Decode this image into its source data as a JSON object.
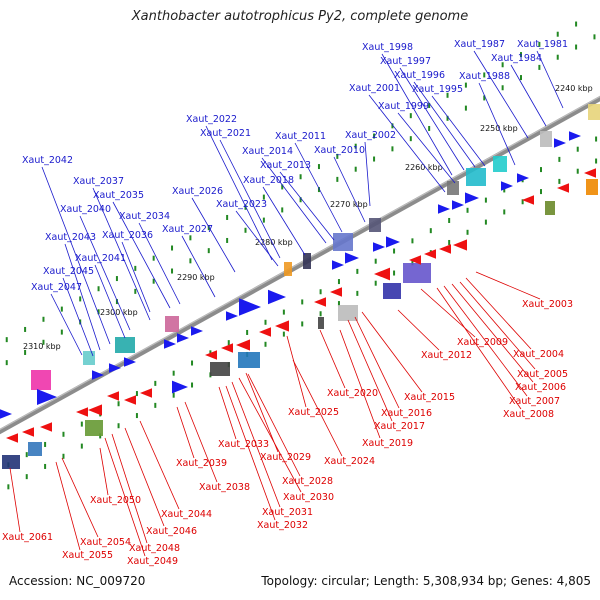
{
  "title": "Xanthobacter autotrophicus Py2, complete genome",
  "accession": "Accession: NC_009720",
  "summary": "Topology: circular; Length: 5,308,934 bp; Genes: 4,805",
  "colors": {
    "plus_label": "#1a1acc",
    "minus_label": "#dd0000",
    "plus_gene": "#1a1aee",
    "minus_gene": "#ee1111",
    "backbone": "#8c8c8c",
    "tick": "#228822"
  },
  "scale_labels": [
    "2240 kbp",
    "2250 kbp",
    "2260 kbp",
    "2270 kbp",
    "2280 kbp",
    "2290 kbp",
    "2300 kbp",
    "2310 kbp"
  ],
  "plus_labels": [
    "Xaut_1981",
    "Xaut_1984",
    "Xaut_1987",
    "Xaut_1988",
    "Xaut_1995",
    "Xaut_1996",
    "Xaut_1997",
    "Xaut_1998",
    "Xaut_1999",
    "Xaut_2001",
    "Xaut_2002",
    "Xaut_2010",
    "Xaut_2011",
    "Xaut_2013",
    "Xaut_2014",
    "Xaut_2018",
    "Xaut_2021",
    "Xaut_2022",
    "Xaut_2023",
    "Xaut_2026",
    "Xaut_2027",
    "Xaut_2034",
    "Xaut_2035",
    "Xaut_2036",
    "Xaut_2037",
    "Xaut_2040",
    "Xaut_2041",
    "Xaut_2042",
    "Xaut_2043",
    "Xaut_2045",
    "Xaut_2047"
  ],
  "minus_labels": [
    "Xaut_2003",
    "Xaut_2004",
    "Xaut_2005",
    "Xaut_2006",
    "Xaut_2007",
    "Xaut_2008",
    "Xaut_2009",
    "Xaut_2012",
    "Xaut_2015",
    "Xaut_2016",
    "Xaut_2017",
    "Xaut_2019",
    "Xaut_2020",
    "Xaut_2024",
    "Xaut_2025",
    "Xaut_2028",
    "Xaut_2029",
    "Xaut_2030",
    "Xaut_2031",
    "Xaut_2032",
    "Xaut_2033",
    "Xaut_2038",
    "Xaut_2039",
    "Xaut_2044",
    "Xaut_2046",
    "Xaut_2048",
    "Xaut_2049",
    "Xaut_2050",
    "Xaut_2054",
    "Xaut_2055",
    "Xaut_2061"
  ]
}
